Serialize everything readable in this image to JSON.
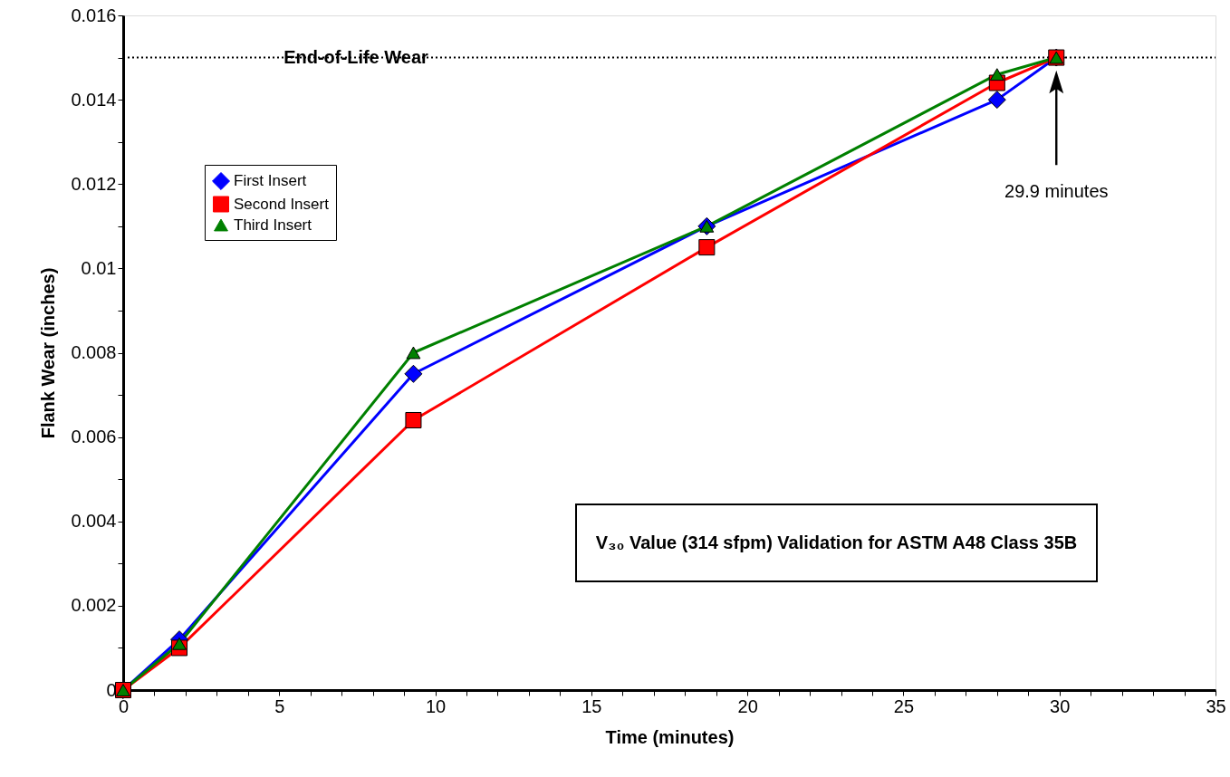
{
  "chart_data": {
    "type": "line",
    "xlabel": "Time (minutes)",
    "ylabel": "Flank Wear (inches)",
    "x": [
      0,
      1.8,
      9.3,
      18.7,
      28.0,
      29.9
    ],
    "series": [
      {
        "name": "First Insert",
        "color": "#0000ff",
        "marker": "diamond",
        "values": [
          0,
          0.0012,
          0.0075,
          0.011,
          0.014,
          0.015
        ]
      },
      {
        "name": "Second Insert",
        "color": "#ff0000",
        "marker": "square",
        "values": [
          0,
          0.001,
          0.0064,
          0.0105,
          0.0144,
          0.015
        ]
      },
      {
        "name": "Third Insert",
        "color": "#008000",
        "marker": "triangle",
        "values": [
          0,
          0.0011,
          0.008,
          0.011,
          0.0146,
          0.015
        ]
      }
    ],
    "xlim": [
      0,
      35
    ],
    "xticks": [
      0,
      {
        "value": 1,
        "label": null
      },
      {
        "value": 2,
        "label": null
      },
      {
        "value": 3,
        "label": null
      },
      {
        "value": 4,
        "label": null
      },
      5,
      {
        "value": 6,
        "label": null
      },
      {
        "value": 7,
        "label": null
      },
      {
        "value": 8,
        "label": null
      },
      {
        "value": 9,
        "label": null
      },
      10,
      {
        "value": 11,
        "label": null
      },
      {
        "value": 12,
        "label": null
      },
      {
        "value": 13,
        "label": null
      },
      {
        "value": 14,
        "label": null
      },
      15,
      {
        "value": 16,
        "label": null
      },
      {
        "value": 17,
        "label": null
      },
      {
        "value": 18,
        "label": null
      },
      {
        "value": 19,
        "label": null
      },
      20,
      {
        "value": 21,
        "label": null
      },
      {
        "value": 22,
        "label": null
      },
      {
        "value": 23,
        "label": null
      },
      {
        "value": 24,
        "label": null
      },
      25,
      {
        "value": 26,
        "label": null
      },
      {
        "value": 27,
        "label": null
      },
      {
        "value": 28,
        "label": null
      },
      {
        "value": 29,
        "label": null
      },
      30,
      {
        "value": 31,
        "label": null
      },
      {
        "value": 32,
        "label": null
      },
      {
        "value": 33,
        "label": null
      },
      {
        "value": 34,
        "label": null
      },
      35
    ],
    "ylim": [
      0,
      0.016
    ],
    "yticks": [
      0,
      {
        "value": 0.001,
        "label": null
      },
      0.002,
      {
        "value": 0.003,
        "label": null
      },
      0.004,
      {
        "value": 0.005,
        "label": null
      },
      0.006,
      {
        "value": 0.007,
        "label": null
      },
      0.008,
      {
        "value": 0.009,
        "label": null
      },
      0.01,
      {
        "value": 0.011,
        "label": null
      },
      0.012,
      {
        "value": 0.013,
        "label": null
      },
      0.014,
      {
        "value": 0.015,
        "label": null
      },
      0.016
    ],
    "ref_lines": [
      {
        "axis": "y",
        "value": 0.015,
        "label": "End-of-Life Wear",
        "color": "#000000",
        "line_style": "dotted"
      }
    ],
    "annotations": [
      "29.9 minutes",
      "V₃₀ Value (314 sfpm) Validation for ASTM A48 Class 35B"
    ],
    "legend": "top left",
    "grid": false,
    "line_style": "solid"
  }
}
